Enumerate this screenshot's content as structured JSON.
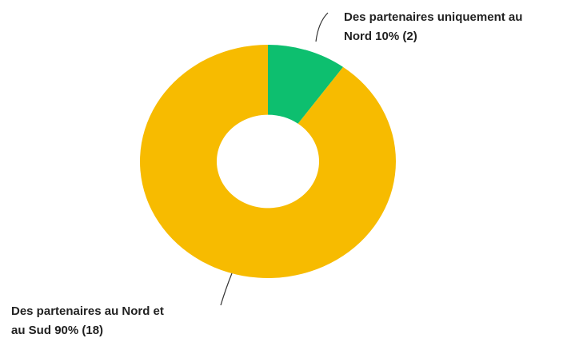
{
  "chart_data": {
    "type": "donut",
    "categories": [
      "Des partenaires uniquement au Nord",
      "Des partenaires au Nord et au Sud"
    ],
    "values": [
      10,
      90
    ],
    "value_labels": [
      "10% (2)",
      "90% (18)"
    ],
    "colors": [
      "#0dbf6f",
      "#f7bb00"
    ]
  }
}
